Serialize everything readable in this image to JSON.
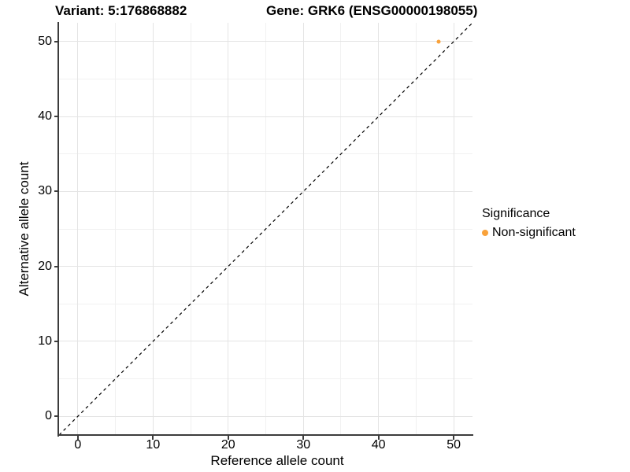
{
  "chart_data": {
    "type": "scatter",
    "titles": {
      "left": "Variant: 5:176868882",
      "right": "Gene: GRK6 (ENSG00000198055)"
    },
    "xlabel": "Reference allele count",
    "ylabel": "Alternative allele count",
    "xlim": [
      -2.5,
      52.5
    ],
    "ylim": [
      -2.5,
      52.5
    ],
    "x_major_ticks": [
      0,
      10,
      20,
      30,
      40,
      50
    ],
    "y_major_ticks": [
      0,
      10,
      20,
      30,
      40,
      50
    ],
    "x_minor_ticks": [
      5,
      15,
      25,
      35,
      45
    ],
    "y_minor_ticks": [
      5,
      15,
      25,
      35,
      45
    ],
    "grid": "major+minor",
    "reference_line": {
      "type": "identity",
      "x1": -2.5,
      "y1": -2.5,
      "x2": 52.5,
      "y2": 52.5,
      "style": "dashed",
      "color": "#000000",
      "width": 1.2,
      "dash": "4 4"
    },
    "series": [
      {
        "name": "Non-significant",
        "color": "#F9A23B",
        "marker": "circle",
        "marker_size": 5,
        "points": [
          {
            "x": 48,
            "y": 50
          }
        ]
      }
    ],
    "legend": {
      "title": "Significance",
      "position": "right",
      "items": [
        {
          "label": "Non-significant",
          "color": "#F9A23B",
          "marker": "circle"
        }
      ]
    },
    "colors": {
      "background": "#FFFFFF",
      "axis_line": "#3C3C3C",
      "tick_text": "#000000",
      "grid_major": "#E4E4E4",
      "grid_minor": "#F1F1F1"
    }
  }
}
